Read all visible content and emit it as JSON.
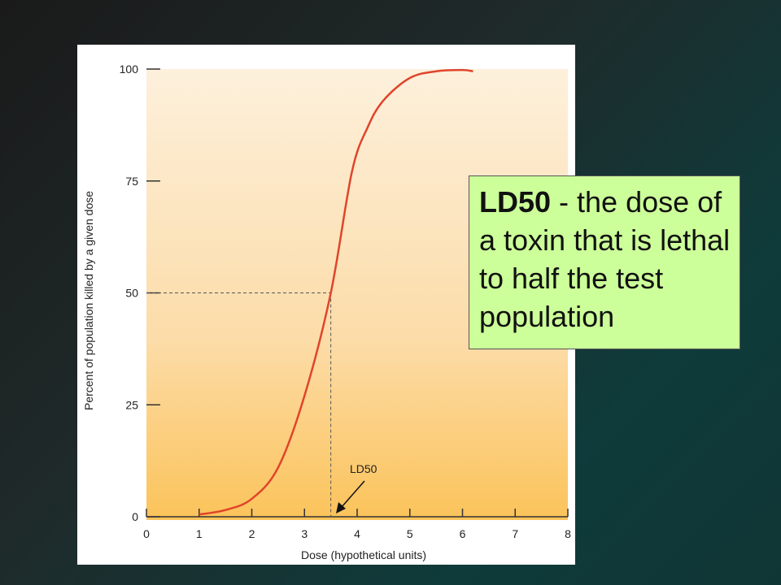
{
  "chart_data": {
    "type": "line",
    "x_label": "Dose (hypothetical units)",
    "y_label": "Percent of population killed  by a given dose",
    "x": [
      1,
      1.5,
      2,
      2.5,
      3,
      3.5,
      3.9,
      4.2,
      4.5,
      5,
      5.5,
      6,
      6.2
    ],
    "values": [
      0.5,
      1.5,
      4,
      11,
      27,
      50,
      77,
      87,
      93,
      98,
      99.5,
      99.8,
      99.5
    ],
    "color": "#e0442a",
    "xlim": [
      0,
      8
    ],
    "xticks": [
      0,
      1,
      2,
      3,
      4,
      5,
      6,
      7,
      8
    ],
    "ylim": [
      0,
      100
    ],
    "yticks": [
      0,
      25,
      50,
      75,
      100
    ],
    "ld50": {
      "x": 3.5,
      "y": 50,
      "label": "LD50"
    }
  },
  "callout": {
    "term": "LD50",
    "text": " - the dose of a toxin that is lethal to half the test population"
  }
}
